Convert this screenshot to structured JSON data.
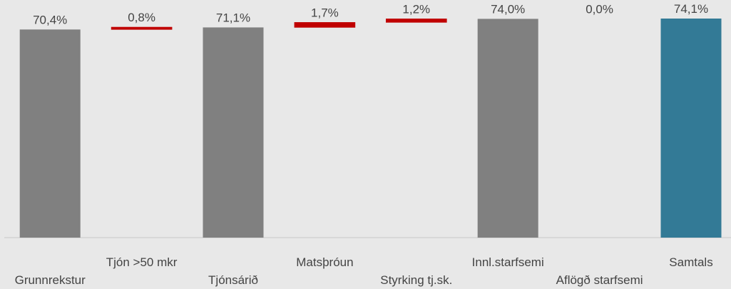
{
  "chart_data": {
    "type": "waterfall",
    "categories": [
      "Grunnrekstur",
      "Tjón >50 mkr",
      "Tjónsárið",
      "Matsþróun",
      "Styrking tj.sk.",
      "Innl.starfsemi",
      "Aflögð starfsemi",
      "Samtals"
    ],
    "values": [
      70.4,
      0.8,
      71.1,
      1.7,
      1.2,
      74.0,
      0.0,
      74.1
    ],
    "value_labels": [
      "70,4%",
      "0,8%",
      "71,1%",
      "1,7%",
      "1,2%",
      "74,0%",
      "0,0%",
      "74,1%"
    ],
    "is_total": [
      true,
      false,
      true,
      false,
      false,
      true,
      false,
      true
    ],
    "colors": [
      "#808080",
      "#c00000",
      "#808080",
      "#c00000",
      "#c00000",
      "#808080",
      "#c00000",
      "#337a96"
    ]
  }
}
